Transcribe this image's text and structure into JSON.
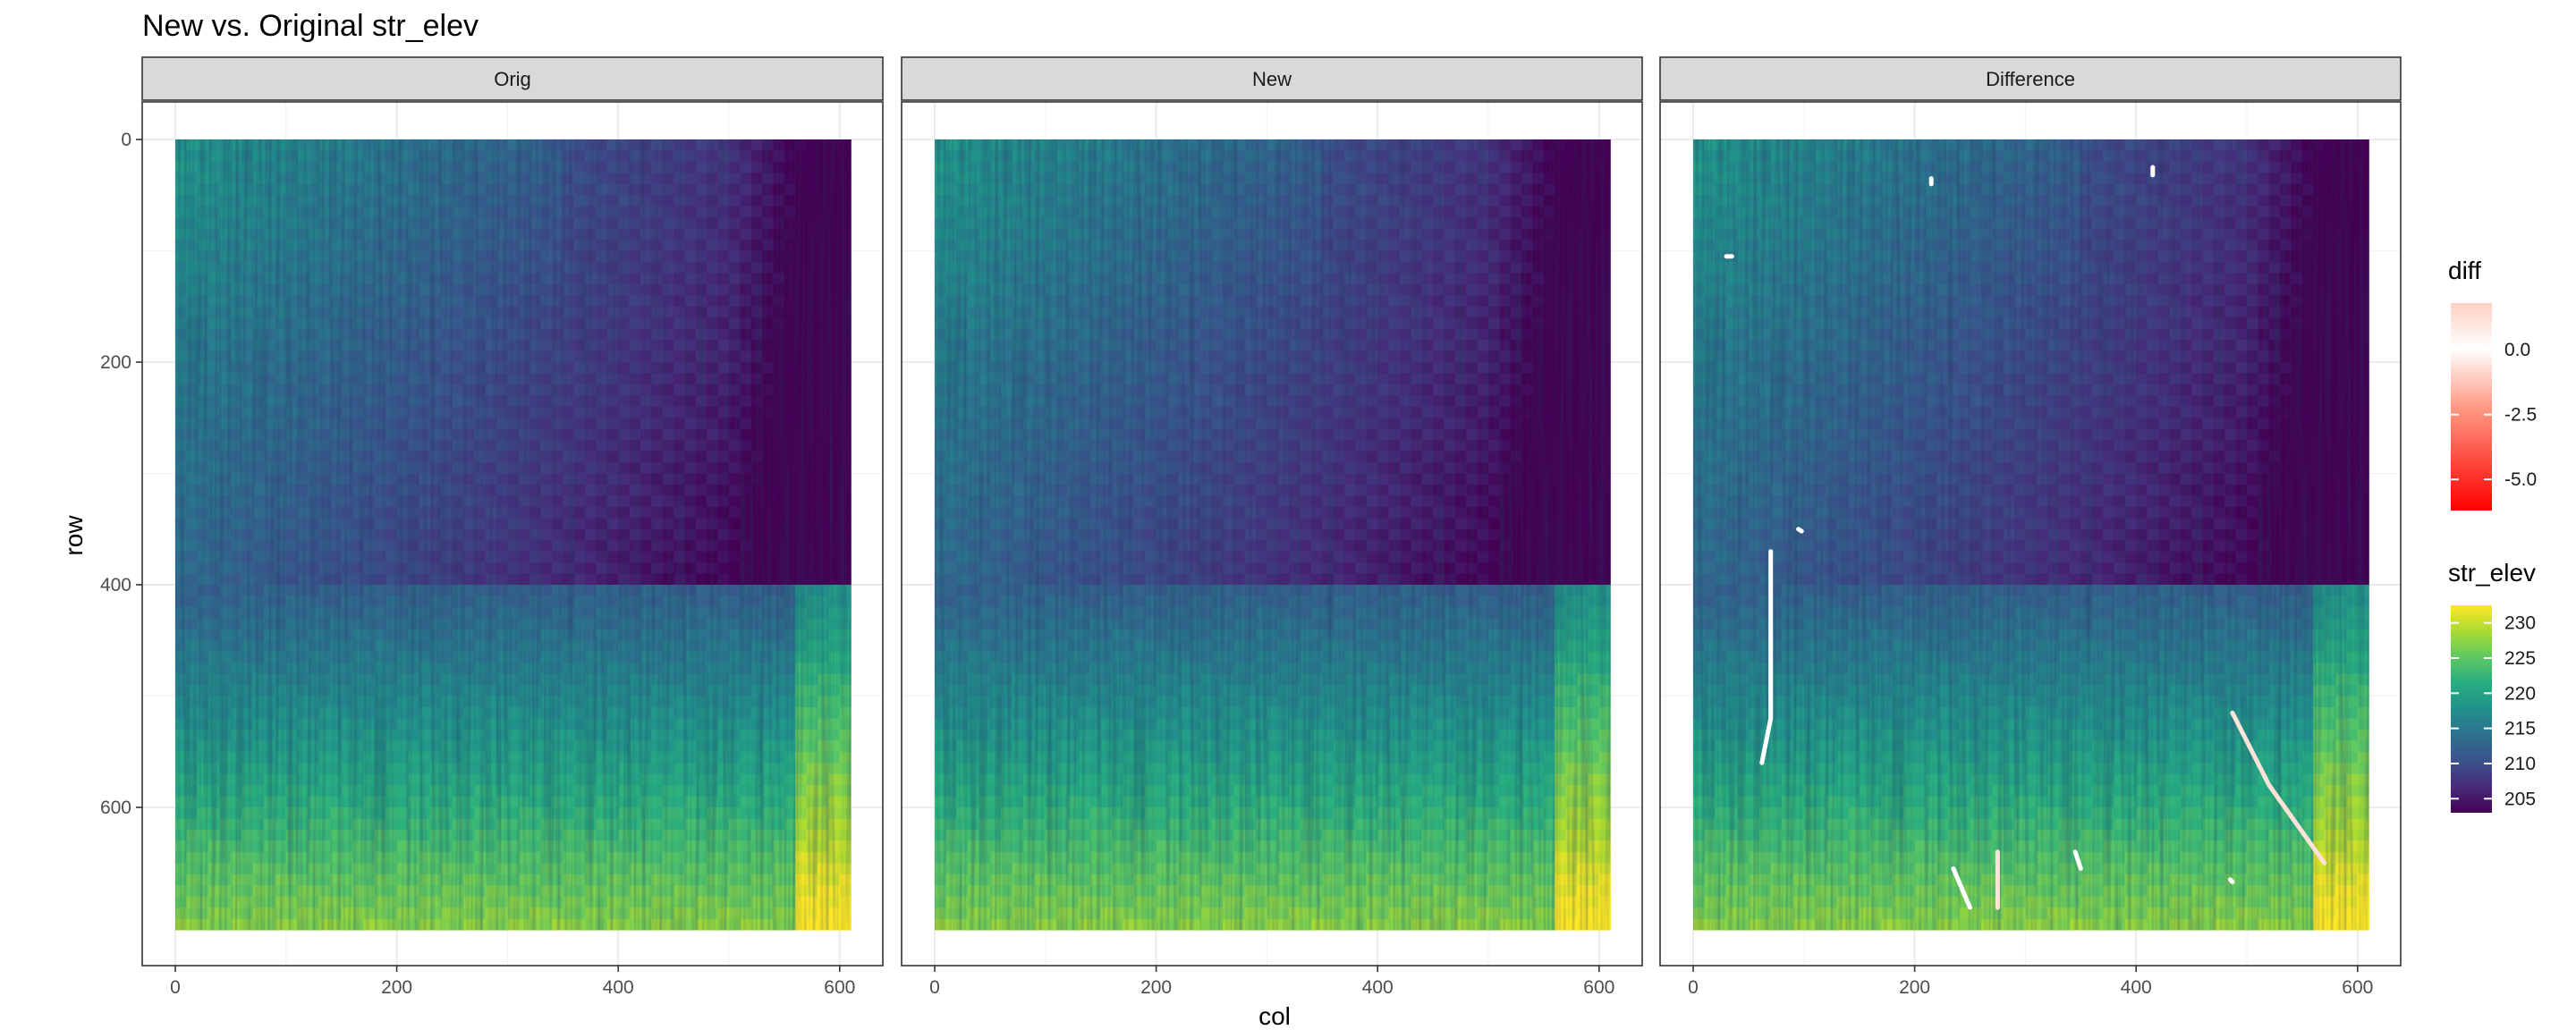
{
  "chart_data": {
    "type": "heatmap",
    "title": "New vs. Original str_elev",
    "xlabel": "col",
    "ylabel": "row",
    "xlim": [
      0,
      614
    ],
    "ylim": [
      710,
      0
    ],
    "x_ticks": [
      0,
      200,
      400,
      600
    ],
    "y_ticks": [
      0,
      200,
      400,
      600
    ],
    "y_reversed": true,
    "grid": true,
    "panels": [
      {
        "name": "Orig",
        "fill": "str_elev"
      },
      {
        "name": "New",
        "fill": "str_elev"
      },
      {
        "name": "Difference",
        "fill": "str_elev",
        "overlay": "diff"
      }
    ],
    "legends": [
      {
        "title": "diff",
        "labels": [
          "0.0",
          "-2.5",
          "-5.0"
        ],
        "values": [
          0.0,
          -2.5,
          -5.0
        ],
        "range": [
          -6.2,
          1.8
        ],
        "colors": [
          "#ffd7cc",
          "#ffffff",
          "#ff0000"
        ]
      },
      {
        "title": "str_elev",
        "labels": [
          "230",
          "225",
          "220",
          "215",
          "210",
          "205"
        ],
        "values": [
          230,
          225,
          220,
          215,
          210,
          205
        ],
        "range": [
          203,
          232.5
        ],
        "colormap": "viridis"
      }
    ],
    "legend_position": "right"
  }
}
